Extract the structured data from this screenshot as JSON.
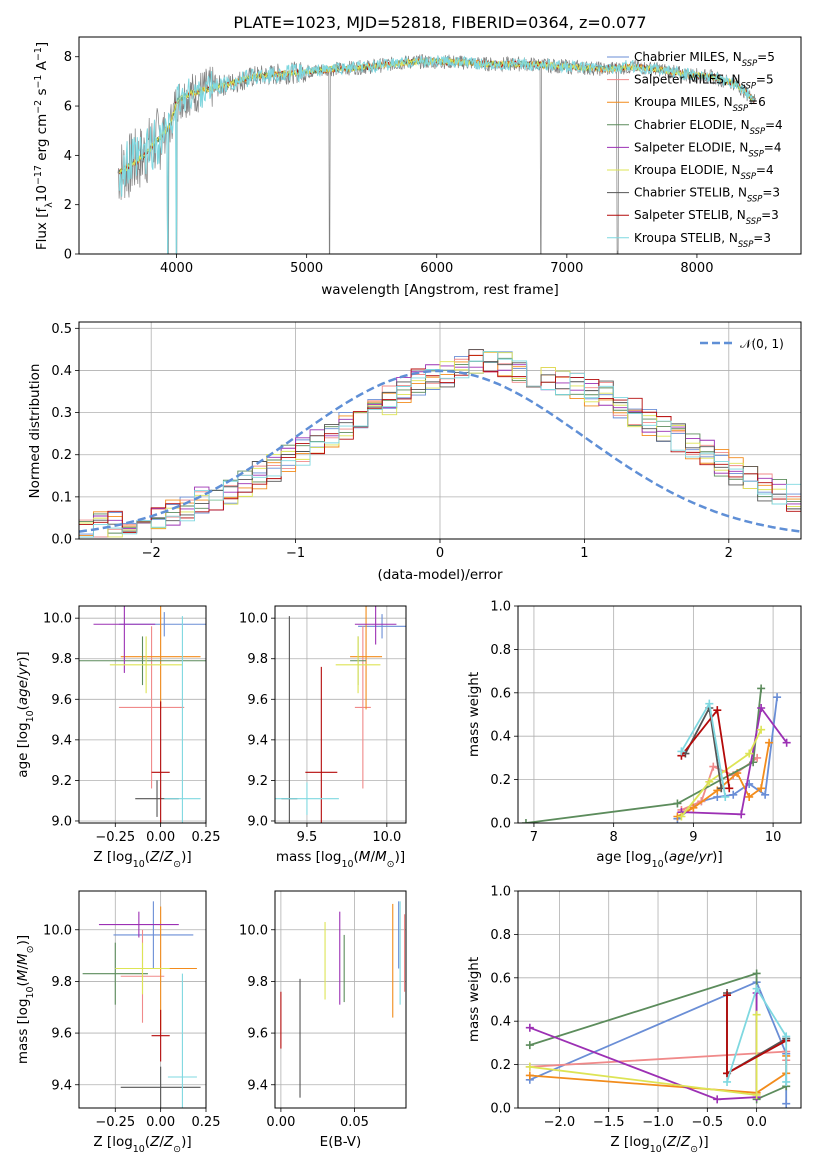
{
  "colors": {
    "chabrier_miles": "#6a8ed6",
    "salpeter_miles": "#f08a8a",
    "kroupa_miles": "#f28c1c",
    "chabrier_elodie": "#5c8c5c",
    "salpeter_elodie": "#9c30b4",
    "kroupa_elodie": "#dde455",
    "chabrier_stelib": "#555555",
    "salpeter_stelib": "#b40a0a",
    "kroupa_stelib": "#7fd8e0",
    "gaussian": "#5f8fd6",
    "spectrum_data": "#808080"
  },
  "chart_data": [
    {
      "id": "spectrum",
      "type": "line",
      "title": "PLATE=1023, MJD=52818, FIBERID=0364, z=0.077",
      "xlabel": "wavelength [Angstrom, rest frame]",
      "ylabel": "Flux [f_λ 10^-17 erg cm^-2 s^-1 A^-1]",
      "xlim": [
        3250,
        8800
      ],
      "ylim": [
        0,
        8.8
      ],
      "xticks": [
        4000,
        5000,
        6000,
        7000,
        8000
      ],
      "yticks": [
        0,
        2,
        4,
        6,
        8
      ],
      "continuum": {
        "x": [
          3550,
          3650,
          3750,
          3850,
          3950,
          4000,
          4100,
          4250,
          4400,
          4600,
          4800,
          5000,
          5200,
          5500,
          5800,
          6100,
          6400,
          6700,
          7000,
          7300,
          7500,
          7700,
          7900,
          8100,
          8300,
          8450
        ],
        "y": [
          3.3,
          3.6,
          4.0,
          4.6,
          5.2,
          6.2,
          6.5,
          6.7,
          6.9,
          7.2,
          7.3,
          7.4,
          7.5,
          7.6,
          7.8,
          7.8,
          7.7,
          7.7,
          7.6,
          7.5,
          7.6,
          7.5,
          7.3,
          7.2,
          6.9,
          6.2
        ]
      },
      "absorption_lines": [
        {
          "x": 3934,
          "depth": 6.6
        },
        {
          "x": 4000,
          "depth": 7.6
        },
        {
          "x": 5176,
          "depth": 7.4
        },
        {
          "x": 6800,
          "depth": 7.6
        },
        {
          "x": 7390,
          "depth": 7.4
        }
      ],
      "legend": {
        "placement": "top-right",
        "entries": [
          {
            "label": "Chabrier MILES, N",
            "sub": "SSP",
            "suffix": "=5",
            "color_key": "chabrier_miles"
          },
          {
            "label": "Salpeter MILES, N",
            "sub": "SSP",
            "suffix": "=5",
            "color_key": "salpeter_miles"
          },
          {
            "label": "Kroupa MILES, N",
            "sub": "SSP",
            "suffix": "=6",
            "color_key": "kroupa_miles"
          },
          {
            "label": "Chabrier ELODIE, N",
            "sub": "SSP",
            "suffix": "=4",
            "color_key": "chabrier_elodie"
          },
          {
            "label": "Salpeter ELODIE, N",
            "sub": "SSP",
            "suffix": "=4",
            "color_key": "salpeter_elodie"
          },
          {
            "label": "Kroupa ELODIE, N",
            "sub": "SSP",
            "suffix": "=4",
            "color_key": "kroupa_elodie"
          },
          {
            "label": "Chabrier STELIB, N",
            "sub": "SSP",
            "suffix": "=3",
            "color_key": "chabrier_stelib"
          },
          {
            "label": "Salpeter STELIB, N",
            "sub": "SSP",
            "suffix": "=3",
            "color_key": "salpeter_stelib"
          },
          {
            "label": "Kroupa STELIB, N",
            "sub": "SSP",
            "suffix": "=3",
            "color_key": "kroupa_stelib"
          }
        ]
      }
    },
    {
      "id": "residuals",
      "type": "histogram",
      "xlabel": "(data-model)/error",
      "ylabel": "Normed distribution",
      "xlim": [
        -2.5,
        2.5
      ],
      "ylim": [
        0,
        0.515
      ],
      "xticks": [
        -2,
        -1,
        0,
        1,
        2
      ],
      "yticks": [
        0.0,
        0.1,
        0.2,
        0.3,
        0.4,
        0.5
      ],
      "grid": true,
      "bin_width": 0.1,
      "bins_from": -2.5,
      "base_values": [
        0.03,
        0.03,
        0.035,
        0.04,
        0.045,
        0.05,
        0.06,
        0.07,
        0.09,
        0.1,
        0.11,
        0.13,
        0.15,
        0.17,
        0.19,
        0.21,
        0.23,
        0.25,
        0.27,
        0.29,
        0.31,
        0.33,
        0.35,
        0.37,
        0.38,
        0.39,
        0.4,
        0.42,
        0.43,
        0.42,
        0.4,
        0.39,
        0.38,
        0.37,
        0.36,
        0.35,
        0.34,
        0.32,
        0.3,
        0.28,
        0.26,
        0.24,
        0.22,
        0.2,
        0.18,
        0.16,
        0.14,
        0.12,
        0.11,
        0.1,
        0.09,
        0.08,
        0.07,
        0.06,
        0.05,
        0.045,
        0.04,
        0.035,
        0.03,
        0.03
      ],
      "gaussian": {
        "label": "N(0,1)",
        "mean": 0,
        "sigma": 1,
        "style": "dashed"
      },
      "legend": {
        "placement": "top-right"
      }
    },
    {
      "id": "age_vs_Z",
      "type": "errorbar",
      "xlabel": "Z [log10(Z/Z☉)]",
      "ylabel": "age  [log10(age/yr)]",
      "xlim": [
        -0.45,
        0.25
      ],
      "ylim": [
        8.99,
        10.06
      ],
      "xticks": [
        -0.25,
        0.0,
        0.25
      ],
      "yticks": [
        9.0,
        9.2,
        9.4,
        9.6,
        9.8,
        10.0
      ],
      "grid": true,
      "points": [
        {
          "x": 0.02,
          "y": 9.97,
          "xerr": 0.25,
          "yerr": 0.06,
          "color_key": "chabrier_miles"
        },
        {
          "x": -0.05,
          "y": 9.56,
          "xerr": 0.18,
          "yerr": 0.4,
          "color_key": "salpeter_miles"
        },
        {
          "x": 0.0,
          "y": 9.81,
          "xerr": 0.22,
          "yerr": 0.26,
          "color_key": "kroupa_miles"
        },
        {
          "x": -0.1,
          "y": 9.79,
          "xerr": 0.35,
          "yerr": 0.12,
          "color_key": "chabrier_elodie"
        },
        {
          "x": -0.2,
          "y": 9.97,
          "xerr": 0.17,
          "yerr": 0.24,
          "color_key": "salpeter_elodie"
        },
        {
          "x": -0.08,
          "y": 9.77,
          "xerr": 0.2,
          "yerr": 0.14,
          "color_key": "kroupa_elodie"
        },
        {
          "x": -0.02,
          "y": 9.11,
          "xerr": 0.12,
          "yerr": 0.09,
          "color_key": "chabrier_stelib"
        },
        {
          "x": 0.0,
          "y": 9.24,
          "xerr": 0.05,
          "yerr": 0.35,
          "color_key": "salpeter_stelib"
        },
        {
          "x": 0.12,
          "y": 9.11,
          "xerr": 0.1,
          "yerr": 0.9,
          "color_key": "kroupa_stelib"
        }
      ]
    },
    {
      "id": "age_vs_mass",
      "type": "errorbar",
      "xlabel": "mass [log10(M/M☉)]",
      "ylabel": "",
      "xlim": [
        9.3,
        10.12
      ],
      "ylim": [
        8.99,
        10.06
      ],
      "xticks": [
        9.5,
        10.0
      ],
      "yticks": [
        9.0,
        9.2,
        9.4,
        9.6,
        9.8,
        10.0
      ],
      "grid": true,
      "points": [
        {
          "x": 9.97,
          "y": 9.96,
          "xerr": 0.15,
          "yerr": 0.06,
          "color_key": "chabrier_miles"
        },
        {
          "x": 9.85,
          "y": 9.56,
          "xerr": 0.05,
          "yerr": 0.4,
          "color_key": "salpeter_miles"
        },
        {
          "x": 9.87,
          "y": 9.81,
          "xerr": 0.1,
          "yerr": 0.26,
          "color_key": "kroupa_miles"
        },
        {
          "x": 9.82,
          "y": 9.79,
          "xerr": 0.05,
          "yerr": 0.12,
          "color_key": "chabrier_elodie"
        },
        {
          "x": 9.93,
          "y": 9.97,
          "xerr": 0.13,
          "yerr": 0.1,
          "color_key": "salpeter_elodie"
        },
        {
          "x": 9.82,
          "y": 9.77,
          "xerr": 0.14,
          "yerr": 0.14,
          "color_key": "kroupa_elodie"
        },
        {
          "x": 9.39,
          "y": 9.11,
          "xerr": 0.05,
          "yerr": 0.9,
          "color_key": "chabrier_stelib"
        },
        {
          "x": 9.59,
          "y": 9.24,
          "xerr": 0.1,
          "yerr": 0.52,
          "color_key": "salpeter_stelib"
        },
        {
          "x": 9.5,
          "y": 9.11,
          "xerr": 0.2,
          "yerr": 0.08,
          "color_key": "kroupa_stelib"
        }
      ]
    },
    {
      "id": "massweight_vs_age",
      "type": "line",
      "xlabel": "age  [log10(age/yr)]",
      "ylabel": "mass weight",
      "xlim": [
        6.8,
        10.35
      ],
      "ylim": [
        0,
        1.0
      ],
      "xticks": [
        7,
        8,
        9,
        10
      ],
      "yticks": [
        0.0,
        0.2,
        0.4,
        0.6,
        0.8,
        1.0
      ],
      "grid": true,
      "series": [
        {
          "color_key": "chabrier_miles",
          "x": [
            8.8,
            9.1,
            9.3,
            9.5,
            9.7,
            9.9,
            10.05
          ],
          "y": [
            0.02,
            0.1,
            0.12,
            0.13,
            0.18,
            0.13,
            0.58
          ]
        },
        {
          "color_key": "salpeter_miles",
          "x": [
            8.85,
            9.1,
            9.25,
            9.5,
            9.8
          ],
          "y": [
            0.06,
            0.1,
            0.26,
            0.22,
            0.3
          ]
        },
        {
          "color_key": "kroupa_miles",
          "x": [
            8.8,
            9.0,
            9.3,
            9.55,
            9.7,
            9.85,
            9.95
          ],
          "y": [
            0.03,
            0.07,
            0.15,
            0.23,
            0.12,
            0.16,
            0.37
          ]
        },
        {
          "color_key": "chabrier_elodie",
          "x": [
            6.9,
            8.8,
            9.75,
            9.85
          ],
          "y": [
            0.0,
            0.09,
            0.28,
            0.62
          ]
        },
        {
          "color_key": "salpeter_elodie",
          "x": [
            8.85,
            9.6,
            9.85,
            10.17
          ],
          "y": [
            0.05,
            0.04,
            0.53,
            0.37
          ]
        },
        {
          "color_key": "kroupa_elodie",
          "x": [
            8.85,
            9.2,
            9.7,
            9.85
          ],
          "y": [
            0.03,
            0.19,
            0.32,
            0.43
          ]
        },
        {
          "color_key": "chabrier_stelib",
          "x": [
            8.9,
            9.2,
            9.35
          ],
          "y": [
            0.32,
            0.53,
            0.16
          ]
        },
        {
          "color_key": "salpeter_stelib",
          "x": [
            8.85,
            9.3,
            9.45
          ],
          "y": [
            0.31,
            0.52,
            0.16
          ]
        },
        {
          "color_key": "kroupa_stelib",
          "x": [
            8.85,
            9.2,
            9.4
          ],
          "y": [
            0.33,
            0.55,
            0.12
          ]
        }
      ]
    },
    {
      "id": "mass_vs_Z",
      "type": "errorbar",
      "xlabel": "Z [log10(Z/Z☉)]",
      "ylabel": "mass [log10(M/M☉)]",
      "xlim": [
        -0.45,
        0.25
      ],
      "ylim": [
        9.31,
        10.15
      ],
      "xticks": [
        -0.25,
        0.0,
        0.25
      ],
      "yticks": [
        9.4,
        9.6,
        9.8,
        10.0
      ],
      "grid": true,
      "points": [
        {
          "x": -0.04,
          "y": 9.98,
          "xerr": 0.22,
          "yerr": 0.13,
          "color_key": "chabrier_miles"
        },
        {
          "x": -0.1,
          "y": 9.82,
          "xerr": 0.12,
          "yerr": 0.18,
          "color_key": "salpeter_miles"
        },
        {
          "x": 0.0,
          "y": 9.85,
          "xerr": 0.2,
          "yerr": 0.24,
          "color_key": "kroupa_miles"
        },
        {
          "x": -0.25,
          "y": 9.83,
          "xerr": 0.18,
          "yerr": 0.12,
          "color_key": "chabrier_elodie"
        },
        {
          "x": -0.12,
          "y": 10.02,
          "xerr": 0.22,
          "yerr": 0.05,
          "color_key": "salpeter_elodie"
        },
        {
          "x": -0.1,
          "y": 9.85,
          "xerr": 0.15,
          "yerr": 0.1,
          "color_key": "kroupa_elodie"
        },
        {
          "x": 0.0,
          "y": 9.39,
          "xerr": 0.22,
          "yerr": 0.08,
          "color_key": "chabrier_stelib"
        },
        {
          "x": 0.0,
          "y": 9.59,
          "xerr": 0.05,
          "yerr": 0.1,
          "color_key": "salpeter_stelib"
        },
        {
          "x": 0.12,
          "y": 9.43,
          "xerr": 0.08,
          "yerr": 0.4,
          "color_key": "kroupa_stelib"
        }
      ]
    },
    {
      "id": "mass_vs_ebv",
      "type": "errorbar",
      "xlabel": "E(B-V)",
      "ylabel": "",
      "xlim": [
        -0.004,
        0.085
      ],
      "ylim": [
        9.31,
        10.15
      ],
      "xticks": [
        0.0,
        0.05
      ],
      "yticks": [
        9.4,
        9.6,
        9.8,
        10.0
      ],
      "grid": true,
      "points": [
        {
          "x": 0.08,
          "y": 9.98,
          "xerr": 0,
          "yerr": 0.13,
          "color_key": "chabrier_miles"
        },
        {
          "x": 0.084,
          "y": 9.91,
          "xerr": 0,
          "yerr": 0.15,
          "color_key": "salpeter_miles"
        },
        {
          "x": 0.076,
          "y": 9.88,
          "xerr": 0,
          "yerr": 0.22,
          "color_key": "kroupa_miles"
        },
        {
          "x": 0.043,
          "y": 9.85,
          "xerr": 0,
          "yerr": 0.13,
          "color_key": "chabrier_elodie"
        },
        {
          "x": 0.04,
          "y": 9.89,
          "xerr": 0,
          "yerr": 0.18,
          "color_key": "salpeter_elodie"
        },
        {
          "x": 0.03,
          "y": 9.88,
          "xerr": 0,
          "yerr": 0.15,
          "color_key": "kroupa_elodie"
        },
        {
          "x": 0.013,
          "y": 9.58,
          "xerr": 0,
          "yerr": 0.23,
          "color_key": "chabrier_stelib"
        },
        {
          "x": 0.0,
          "y": 9.65,
          "xerr": 0,
          "yerr": 0.11,
          "color_key": "salpeter_stelib"
        },
        {
          "x": 0.081,
          "y": 9.91,
          "xerr": 0,
          "yerr": 0.2,
          "color_key": "kroupa_stelib"
        }
      ]
    },
    {
      "id": "massweight_vs_Z",
      "type": "line",
      "xlabel": "Z [log10(Z/Z☉)]",
      "ylabel": "mass weight",
      "xlim": [
        -2.42,
        0.45
      ],
      "ylim": [
        0,
        1.0
      ],
      "xticks": [
        -2.0,
        -1.5,
        -1.0,
        -0.5,
        0.0
      ],
      "yticks": [
        0.0,
        0.2,
        0.4,
        0.6,
        0.8,
        1.0
      ],
      "grid": true,
      "series": [
        {
          "color_key": "chabrier_miles",
          "x": [
            -2.3,
            0.0,
            0.3,
            0.3
          ],
          "y": [
            0.13,
            0.58,
            0.25,
            0.02
          ]
        },
        {
          "color_key": "salpeter_miles",
          "x": [
            -2.3,
            0.3,
            0.3
          ],
          "y": [
            0.19,
            0.26,
            0.22
          ]
        },
        {
          "color_key": "kroupa_miles",
          "x": [
            -2.3,
            0.0,
            0.3,
            0.3
          ],
          "y": [
            0.15,
            0.07,
            0.16,
            0.24
          ]
        },
        {
          "color_key": "chabrier_elodie",
          "x": [
            -2.3,
            0.0,
            0.0,
            0.3
          ],
          "y": [
            0.29,
            0.62,
            0.04,
            0.1
          ]
        },
        {
          "color_key": "salpeter_elodie",
          "x": [
            -2.3,
            -0.4,
            0.0,
            0.0
          ],
          "y": [
            0.37,
            0.04,
            0.05,
            0.53
          ]
        },
        {
          "color_key": "kroupa_elodie",
          "x": [
            -2.3,
            0.0,
            0.0
          ],
          "y": [
            0.19,
            0.06,
            0.43
          ]
        },
        {
          "color_key": "chabrier_stelib",
          "x": [
            -0.3,
            -0.3,
            0.3
          ],
          "y": [
            0.53,
            0.16,
            0.32
          ]
        },
        {
          "color_key": "salpeter_stelib",
          "x": [
            -0.3,
            -0.3,
            0.3
          ],
          "y": [
            0.52,
            0.16,
            0.31
          ]
        },
        {
          "color_key": "kroupa_stelib",
          "x": [
            -0.3,
            0.0,
            0.3,
            0.3
          ],
          "y": [
            0.12,
            0.55,
            0.33,
            0.12
          ]
        }
      ]
    }
  ]
}
